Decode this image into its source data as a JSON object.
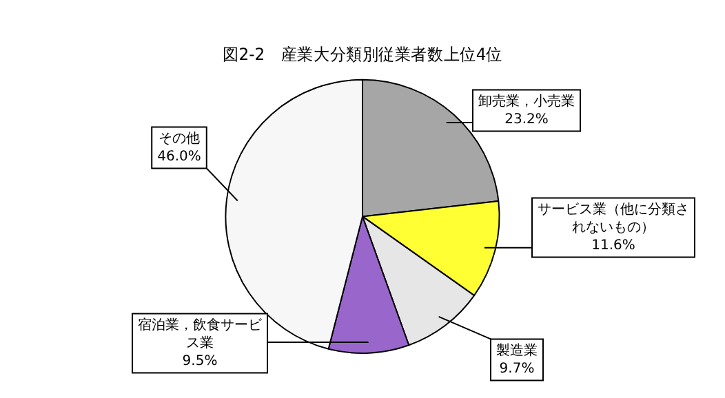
{
  "chart_data": {
    "type": "pie",
    "title": "図2-2　産業大分類別従業者数上位4位",
    "categories": [
      "卸売業，小売業",
      "サービス業（他に分類されないもの）",
      "製造業",
      "宿泊業，飲食サービス業",
      "その他"
    ],
    "values": [
      23.2,
      11.6,
      9.7,
      9.5,
      46.0
    ],
    "value_labels": [
      "23.2%",
      "11.6%",
      "9.7%",
      "9.5%",
      "46.0%"
    ],
    "colors": [
      "#a6a6a6",
      "#ffff33",
      "#e6e6e6",
      "#9966cc",
      "#f7f7f7"
    ],
    "legend": false
  }
}
